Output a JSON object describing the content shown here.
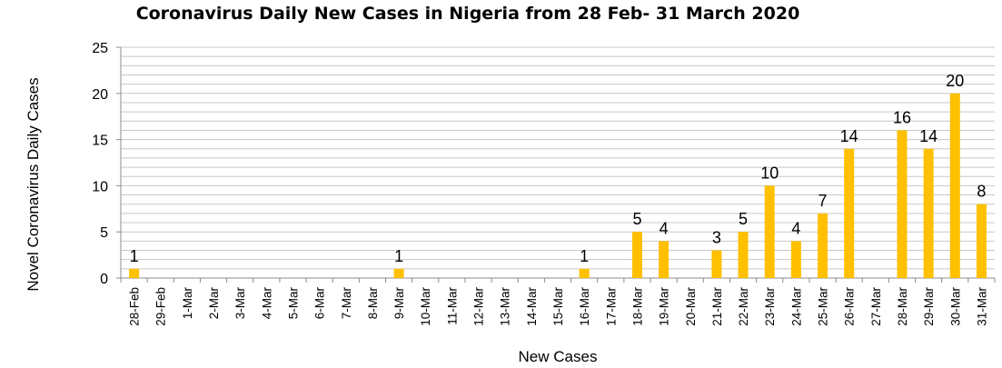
{
  "chart_data": {
    "type": "bar",
    "title": "Coronavirus Daily New Cases in Nigeria from 28 Feb- 31 March 2020",
    "xlabel": "New Cases",
    "ylabel": "Novel Coronavirus Daily Cases",
    "ylim": [
      0,
      25
    ],
    "yticks": [
      0,
      5,
      10,
      15,
      20,
      25
    ],
    "grid": true,
    "legend": "none",
    "bar_color": "#FFC000",
    "categories": [
      "28-Feb",
      "29-Feb",
      "1-Mar",
      "2-Mar",
      "3-Mar",
      "4-Mar",
      "5-Mar",
      "6-Mar",
      "7-Mar",
      "8-Mar",
      "9-Mar",
      "10-Mar",
      "11-Mar",
      "12-Mar",
      "13-Mar",
      "14-Mar",
      "15-Mar",
      "16-Mar",
      "17-Mar",
      "18-Mar",
      "19-Mar",
      "20-Mar",
      "21-Mar",
      "22-Mar",
      "23-Mar",
      "24-Mar",
      "25-Mar",
      "26-Mar",
      "27-Mar",
      "28-Mar",
      "29-Mar",
      "30-Mar",
      "31-Mar"
    ],
    "values": [
      1,
      0,
      0,
      0,
      0,
      0,
      0,
      0,
      0,
      0,
      1,
      0,
      0,
      0,
      0,
      0,
      0,
      1,
      0,
      5,
      4,
      0,
      3,
      5,
      10,
      4,
      7,
      14,
      0,
      16,
      14,
      20,
      8
    ]
  }
}
